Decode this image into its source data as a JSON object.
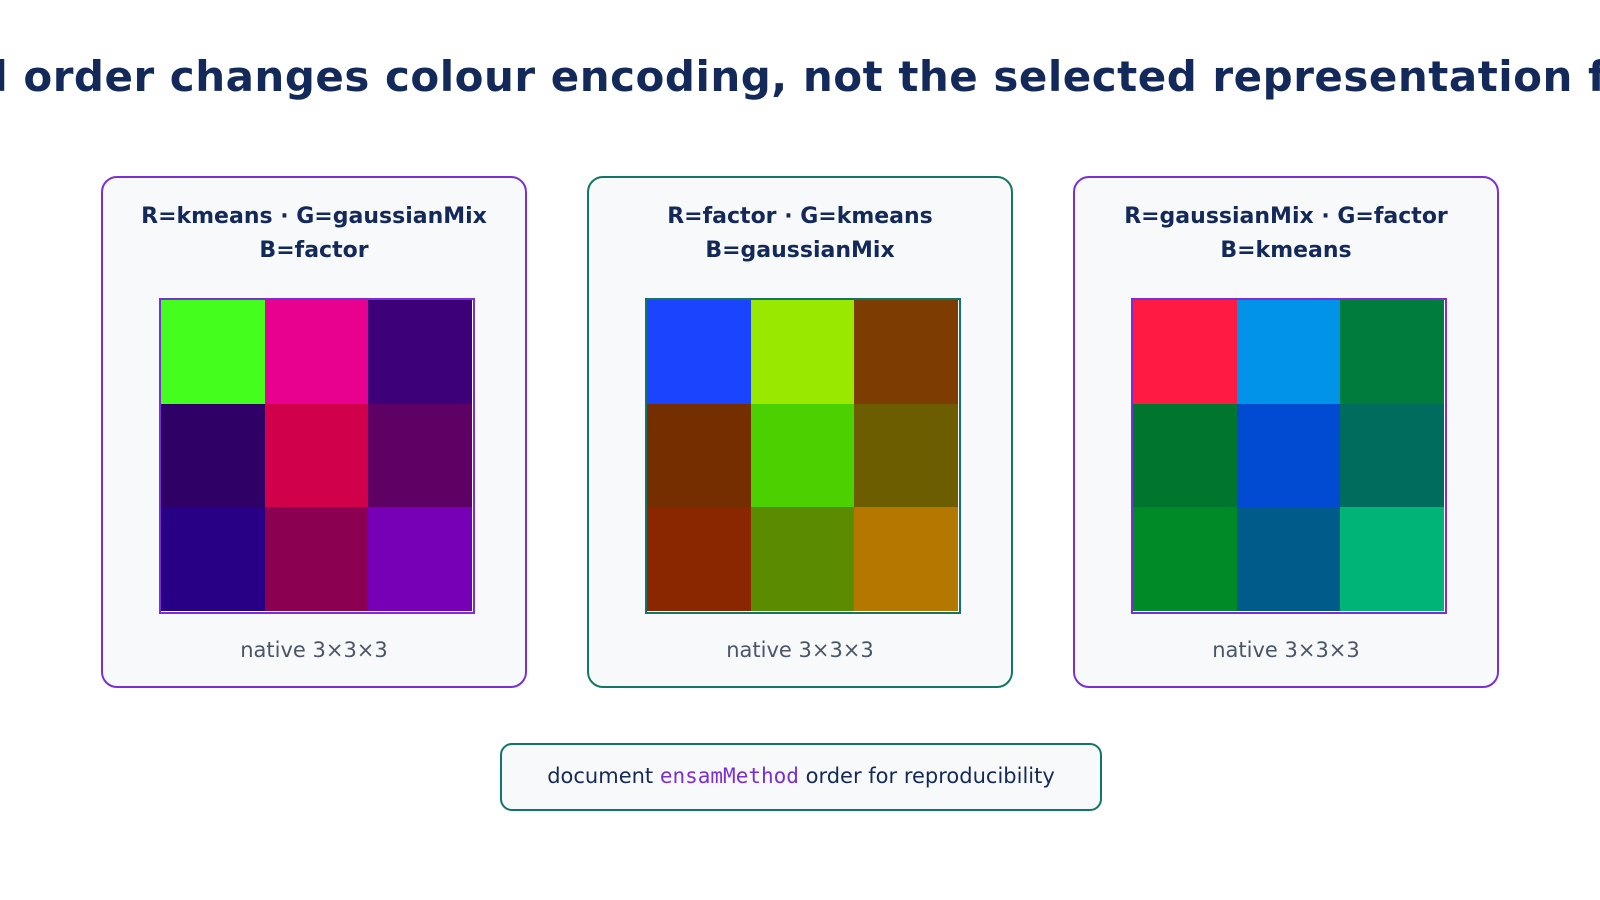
{
  "title": "el order changes colour encoding, not the selected representation fa",
  "panels": [
    {
      "line1": "R=kmeans · G=gaussianMix",
      "line2": "B=factor",
      "caption": "native 3×3×3",
      "cells": [
        "#44ff1d",
        "#e8008f",
        "#3d0078",
        "#2f0066",
        "#d1004b",
        "#5e0064",
        "#270086",
        "#8b0051",
        "#7700b6"
      ]
    },
    {
      "line1": "R=factor · G=kmeans",
      "line2": "B=gaussianMix",
      "caption": "native 3×3×3",
      "cells": [
        "#1a44ff",
        "#99e800",
        "#7d3d00",
        "#752e00",
        "#4bd100",
        "#6c5e00",
        "#8a2700",
        "#5b8b00",
        "#b47700"
      ]
    },
    {
      "line1": "R=gaussianMix · G=factor",
      "line2": "B=kmeans",
      "caption": "native 3×3×3",
      "cells": [
        "#ff1a44",
        "#0093e8",
        "#007d3d",
        "#00752e",
        "#004bd1",
        "#006c5e",
        "#008a27",
        "#005b8b",
        "#00b477"
      ]
    }
  ],
  "note": {
    "before": "document ",
    "code": "ensamMethod",
    "after": " order for reproducibility"
  }
}
